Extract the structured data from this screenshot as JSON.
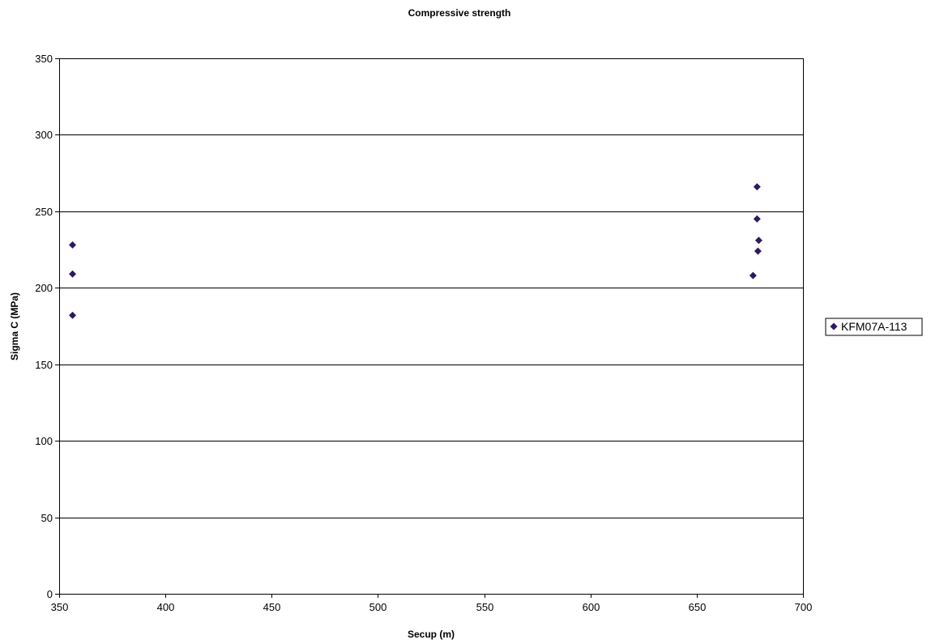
{
  "chart_data": {
    "type": "scatter",
    "title": "Compressive strength",
    "xlabel": "Secup (m)",
    "ylabel": "Sigma C (MPa)",
    "xlim": [
      350,
      700
    ],
    "ylim": [
      0,
      350
    ],
    "xticks": [
      350,
      400,
      450,
      500,
      550,
      600,
      650,
      700
    ],
    "yticks": [
      0,
      50,
      100,
      150,
      200,
      250,
      300,
      350
    ],
    "grid": "horizontal major gridlines",
    "legend_position": "right",
    "marker": "diamond",
    "colors": {
      "marker": "#2e1a5e",
      "grid": "#000000",
      "background": "#ffffff"
    },
    "series": [
      {
        "name": "KFM07A-113",
        "points": [
          {
            "x": 356.3,
            "y": 228
          },
          {
            "x": 356.3,
            "y": 209
          },
          {
            "x": 356.3,
            "y": 182
          },
          {
            "x": 676.5,
            "y": 208
          },
          {
            "x": 678.4,
            "y": 266
          },
          {
            "x": 678.4,
            "y": 245
          },
          {
            "x": 678.8,
            "y": 224
          },
          {
            "x": 679.2,
            "y": 231
          }
        ]
      }
    ]
  }
}
